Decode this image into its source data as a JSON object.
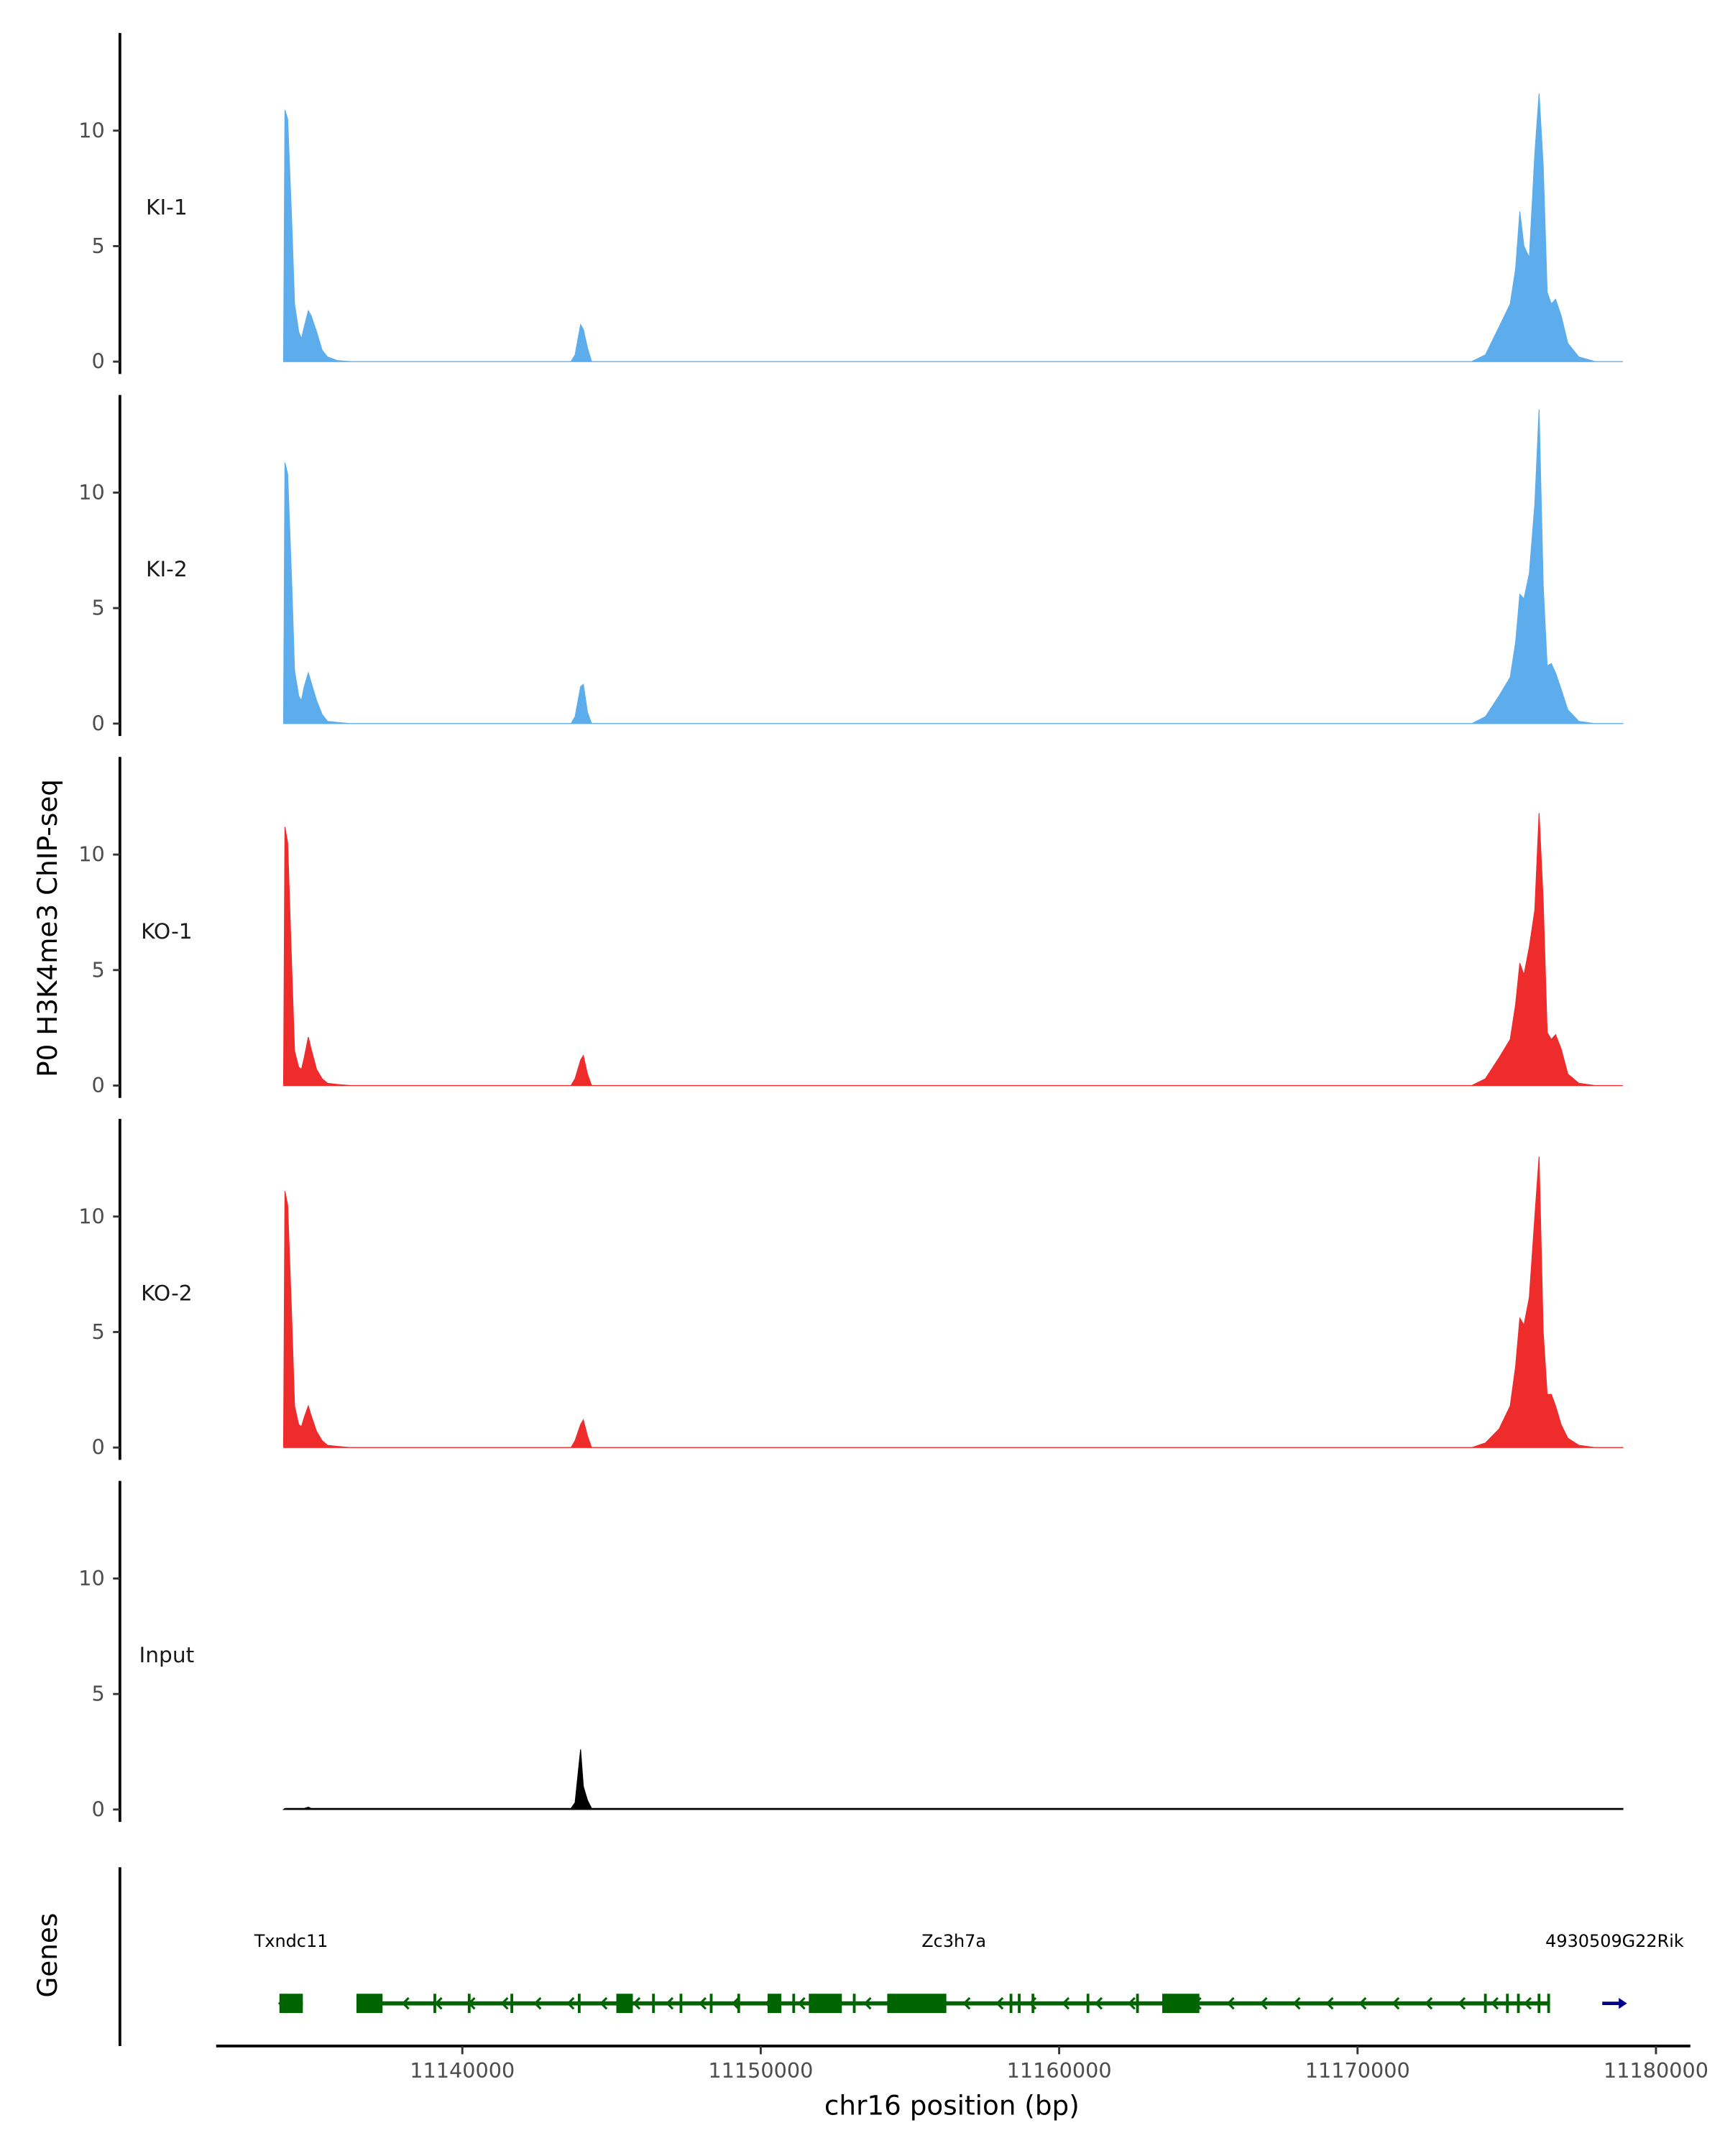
{
  "chart_data": {
    "type": "area",
    "title": "",
    "ylabel": "P0 H3K4me3 ChIP-seq",
    "xlabel": "chr16 position (bp)",
    "xlim": [
      11131750,
      11181150
    ],
    "ylim": [
      0,
      14
    ],
    "grid": false,
    "y_ticks": [
      0,
      5,
      10
    ],
    "y_tick_labels": [
      "0",
      "5",
      "10"
    ],
    "x_ticks": [
      11140000,
      11150000,
      11160000,
      11170000,
      11180000
    ],
    "x_tick_labels": [
      "11140000",
      "11150000",
      "11160000",
      "11170000",
      "11180000"
    ],
    "positions": [
      11134010,
      11134056,
      11134148,
      11134286,
      11134378,
      11134516,
      11134609,
      11134701,
      11134839,
      11134931,
      11135116,
      11135300,
      11135484,
      11135807,
      11136268,
      11143640,
      11143779,
      11143963,
      11144055,
      11144193,
      11144332,
      11173823,
      11174284,
      11174744,
      11175113,
      11175297,
      11175436,
      11175574,
      11175758,
      11175942,
      11176081,
      11176219,
      11176357,
      11176495,
      11176634,
      11176818,
      11177048,
      11177417,
      11177970,
      11178892
    ],
    "tracks": [
      {
        "name": "KI-1",
        "color": "#5DADEC",
        "values": [
          0,
          10.9,
          10.5,
          6,
          2.5,
          1.3,
          1.0,
          1.5,
          2.2,
          2.0,
          1.3,
          0.5,
          0.2,
          0.05,
          0,
          0,
          0.3,
          1.6,
          1.4,
          0.6,
          0,
          0,
          0.3,
          1.5,
          2.5,
          4,
          6.5,
          5,
          4.5,
          9,
          11.6,
          8.5,
          3,
          2.5,
          2.7,
          2,
          0.8,
          0.2,
          0,
          0
        ]
      },
      {
        "name": "KI-2",
        "color": "#5DADEC",
        "values": [
          0,
          11.3,
          10.8,
          6,
          2.3,
          1.2,
          1.0,
          1.6,
          2.2,
          1.8,
          1.0,
          0.4,
          0.1,
          0.05,
          0,
          0,
          0.3,
          1.6,
          1.7,
          0.5,
          0,
          0,
          0.3,
          1.2,
          2.0,
          3.5,
          5.6,
          5.4,
          6.5,
          9.5,
          13.6,
          6,
          2.5,
          2.6,
          2.2,
          1.5,
          0.6,
          0.1,
          0,
          0
        ]
      },
      {
        "name": "KO-1",
        "color": "#EE2C2C",
        "values": [
          0,
          11.2,
          10.5,
          5,
          1.5,
          0.8,
          0.7,
          1.2,
          2.1,
          1.6,
          0.7,
          0.3,
          0.1,
          0.05,
          0,
          0,
          0.3,
          1.1,
          1.3,
          0.5,
          0,
          0,
          0.3,
          1.2,
          2.0,
          3.5,
          5.3,
          4.8,
          6.0,
          7.6,
          11.8,
          8,
          2.3,
          2.0,
          2.2,
          1.6,
          0.5,
          0.1,
          0,
          0
        ]
      },
      {
        "name": "KO-2",
        "color": "#EE2C2C",
        "values": [
          0,
          11.1,
          10.5,
          5.5,
          1.8,
          1.0,
          0.9,
          1.3,
          1.8,
          1.4,
          0.7,
          0.3,
          0.1,
          0.05,
          0,
          0,
          0.3,
          1.0,
          1.2,
          0.5,
          0,
          0,
          0.2,
          0.8,
          1.8,
          3.5,
          5.6,
          5.3,
          6.5,
          10,
          12.6,
          5,
          2.3,
          2.3,
          1.8,
          1.0,
          0.4,
          0.1,
          0,
          0
        ]
      },
      {
        "name": "Input",
        "color": "#000000",
        "values": [
          0,
          0.05,
          0.05,
          0.05,
          0.05,
          0.05,
          0.05,
          0.05,
          0.1,
          0.05,
          0.05,
          0.05,
          0.05,
          0.05,
          0.05,
          0.05,
          0.3,
          2.6,
          1.0,
          0.4,
          0.05,
          0.05,
          0.05,
          0.05,
          0.05,
          0.05,
          0.05,
          0.05,
          0.05,
          0.05,
          0.05,
          0.05,
          0.05,
          0.05,
          0.05,
          0.05,
          0.05,
          0.05,
          0.05,
          0.05
        ]
      }
    ],
    "genes_label": "Genes",
    "genes": [
      {
        "name": "Txndc11",
        "start": 11133871,
        "end": 11134655,
        "strand": "-",
        "color": "#006400",
        "exons": [
          [
            11133871,
            11134655
          ]
        ]
      },
      {
        "name": "Zc3h7a",
        "start": 11136498,
        "end": 11176449,
        "strand": "-",
        "color": "#006400",
        "exons": [
          [
            11136452,
            11137327
          ],
          [
            11145161,
            11145714
          ],
          [
            11150230,
            11150691
          ],
          [
            11151612,
            11152718
          ],
          [
            11154239,
            11156220
          ],
          [
            11163455,
            11164699
          ],
          [
            11139032,
            11139100
          ],
          [
            11140184,
            11140250
          ],
          [
            11141613,
            11141680
          ],
          [
            11143871,
            11143940
          ],
          [
            11146359,
            11146420
          ],
          [
            11147281,
            11147340
          ],
          [
            11148294,
            11148360
          ],
          [
            11149216,
            11149280
          ],
          [
            11151059,
            11151120
          ],
          [
            11153087,
            11153150
          ],
          [
            11158340,
            11158400
          ],
          [
            11158616,
            11158680
          ],
          [
            11159077,
            11159140
          ],
          [
            11160920,
            11160990
          ],
          [
            11162579,
            11162640
          ],
          [
            11174237,
            11174300
          ],
          [
            11174975,
            11175040
          ],
          [
            11175343,
            11175400
          ],
          [
            11176035,
            11176100
          ],
          [
            11176357,
            11176449
          ]
        ]
      },
      {
        "name": "4930509G22Rik",
        "start": 11178200,
        "end": 11179030,
        "strand": "+",
        "color": "#00008B",
        "exons": []
      }
    ]
  }
}
